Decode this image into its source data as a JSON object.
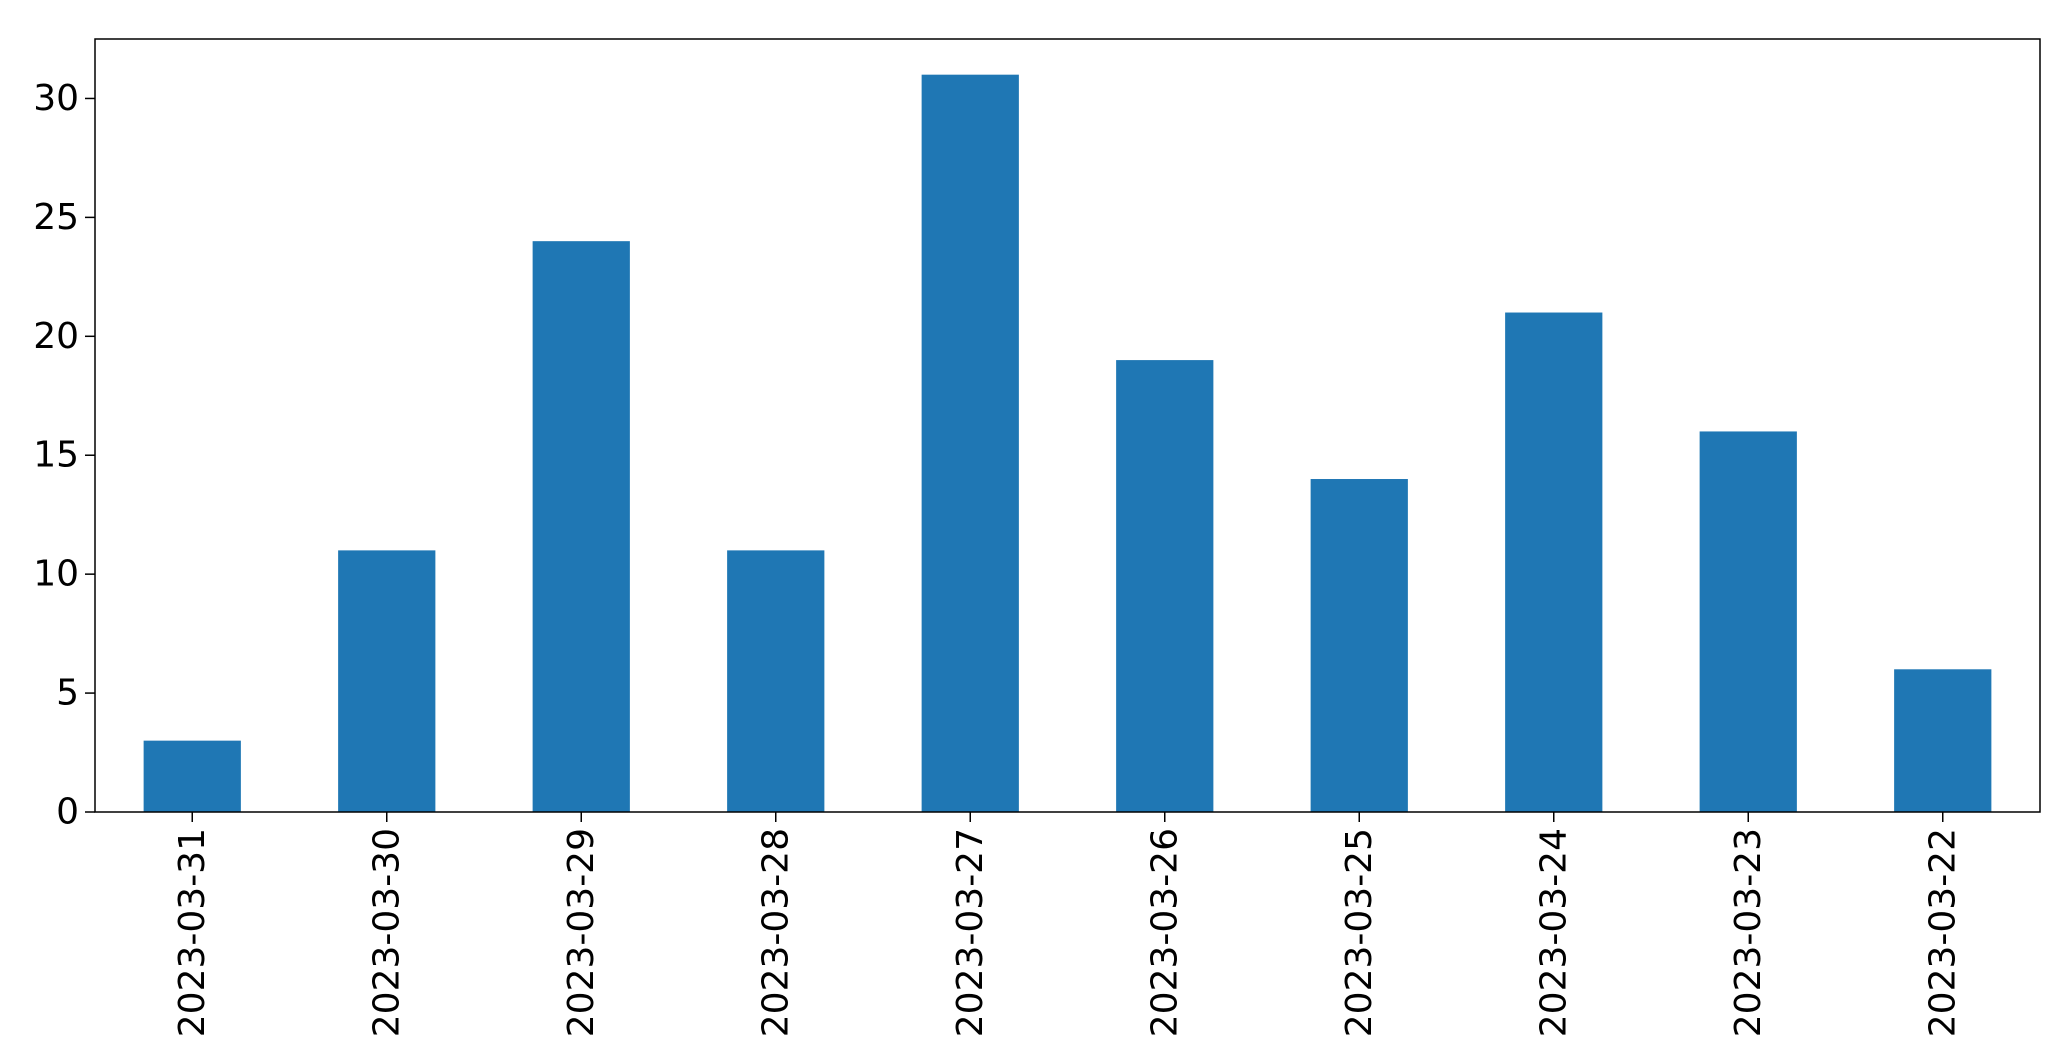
{
  "chart_data": {
    "type": "bar",
    "categories": [
      "2023-03-31",
      "2023-03-30",
      "2023-03-29",
      "2023-03-28",
      "2023-03-27",
      "2023-03-26",
      "2023-03-25",
      "2023-03-24",
      "2023-03-23",
      "2023-03-22"
    ],
    "values": [
      3,
      11,
      24,
      11,
      31,
      19,
      14,
      21,
      16,
      6
    ],
    "title": "",
    "xlabel": "",
    "ylabel": "",
    "ylim": [
      0,
      32.5
    ],
    "yticks": [
      0,
      5,
      10,
      15,
      20,
      25,
      30
    ],
    "bar_color": "#1f77b4",
    "grid": false,
    "legend": "none",
    "x_tick_rotation": "vertical"
  }
}
